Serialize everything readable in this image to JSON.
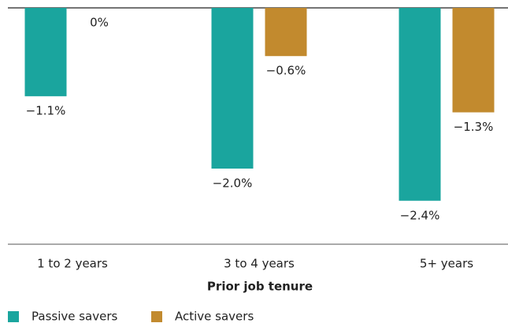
{
  "chart_data": {
    "type": "bar",
    "categories": [
      "1 to 2 years",
      "3 to 4 years",
      "5+ years"
    ],
    "x_label": "Prior job tenure",
    "series": [
      {
        "name": "Passive savers",
        "color": "#1aa59e",
        "values": [
          -1.1,
          -2.0,
          -2.4
        ],
        "value_labels": [
          "−1.1%",
          "−2.0%",
          "−2.4%"
        ]
      },
      {
        "name": "Active savers",
        "color": "#c28a2e",
        "values": [
          0,
          -0.6,
          -1.3
        ],
        "value_labels": [
          "0%",
          "−0.6%",
          "−1.3%"
        ]
      }
    ]
  }
}
